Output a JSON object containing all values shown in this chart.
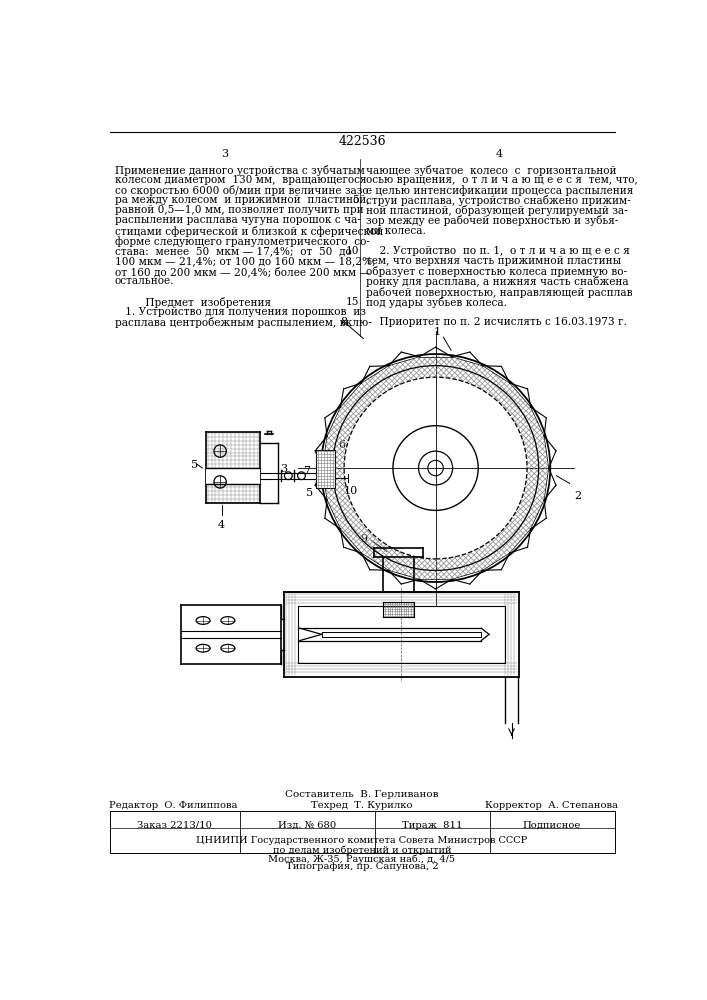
{
  "patent_number": "422536",
  "page_left": "3",
  "page_right": "4",
  "text_left_col": [
    "Применение данного устройства с зубчатым",
    "колесом диаметром  130 мм,  вращающегося",
    "со скоростью 6000 об/мин при величине зазо-",
    "ра между колесом  и прижимной  пластиной,",
    "равной 0,5—1,0 мм, позволяет получить при",
    "распылении расплава чугуна порошок с ча-",
    "стицами сферической и близкой к сферической",
    "форме следующего гранулометрического  со-",
    "става:  менее  50  мкм — 17,4%;  от  50  до",
    "100 мкм — 21,4%; от 100 до 160 мкм — 18,2%;",
    "от 160 до 200 мкм — 20,4%; более 200 мкм —",
    "остальное.",
    "",
    "         Предмет  изобретения",
    "   1. Устройство для получения порошков  из",
    "расплава центробежным распылением, вклю-"
  ],
  "text_right_col": [
    "чающее зубчатое  колесо  с  горизонтальной",
    "осью вращения,  о т л и ч а ю щ е е с я  тем, что,",
    "с целью интенсификации процесса распыления",
    "струи расплава, устройство снабжено прижим-",
    "ной пластиной, образующей регулируемый за-",
    "зор между ее рабочей поверхностью и зубья-",
    "ми колеса.",
    "",
    "    2. Устройство  по п. 1,  о т л и ч а ю щ е е с я",
    "тем, что верхняя часть прижимной пластины",
    "образует с поверхностью колеса приемную во-",
    "ронку для расплава, а нижняя часть снабжена",
    "рабочей поверхностью, направляющей расплав",
    "под удары зубьев колеса.",
    "",
    "    Приоритет по п. 2 исчислять с 16.03.1973 г."
  ],
  "footer_composer": "Составитель  В. Герливанов",
  "footer_editor": "Редактор  О. Филиппова",
  "footer_tech": "Техред  Т. Курилко",
  "footer_corrector": "Корректор  А. Степанова",
  "footer_order": "Заказ 2213/10",
  "footer_edition": "Изд. № 680",
  "footer_circulation": "Тираж  811",
  "footer_subscription": "Подписное",
  "footer_institute": "ЦНИИПИ Государственного комитета Совета Министров СССР",
  "footer_address1": "по делам изобретений и открытий",
  "footer_address2": "Москва, Ж-35, Раушская наб., д. 4/5",
  "footer_print": "Типография, пр. Сапунова, 2",
  "bg_color": "#ffffff"
}
